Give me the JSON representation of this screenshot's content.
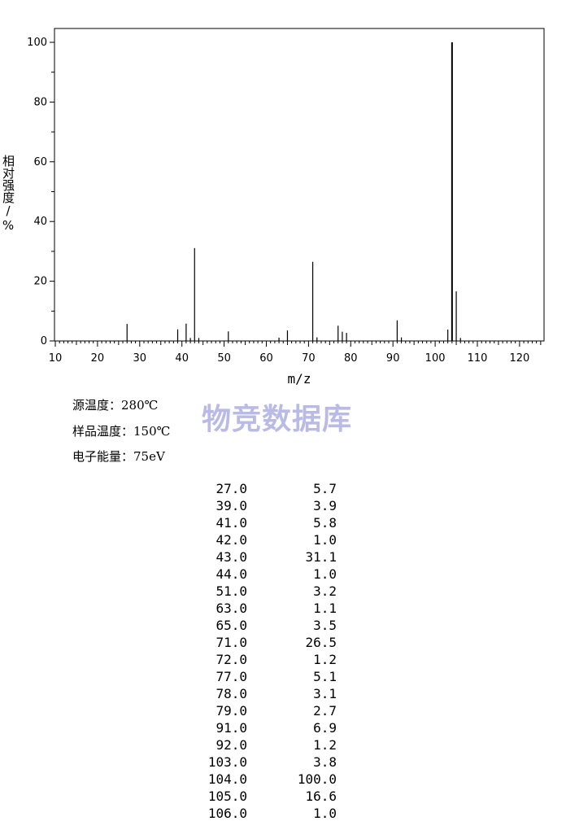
{
  "chart_data": {
    "type": "bar",
    "xlabel": "m/z",
    "ylabel": "相对强度/%",
    "xlim": [
      10,
      125
    ],
    "ylim": [
      0,
      105
    ],
    "x_ticks": [
      "10",
      "20",
      "30",
      "40",
      "50",
      "60",
      "70",
      "80",
      "90",
      "100",
      "110",
      "120"
    ],
    "y_ticks": [
      "0",
      "20",
      "40",
      "60",
      "80",
      "100"
    ],
    "grid": false,
    "peaks": [
      {
        "mz": 27.0,
        "intensity": 5.7
      },
      {
        "mz": 39.0,
        "intensity": 3.9
      },
      {
        "mz": 41.0,
        "intensity": 5.8
      },
      {
        "mz": 42.0,
        "intensity": 1.0
      },
      {
        "mz": 43.0,
        "intensity": 31.1
      },
      {
        "mz": 44.0,
        "intensity": 1.0
      },
      {
        "mz": 51.0,
        "intensity": 3.2
      },
      {
        "mz": 63.0,
        "intensity": 1.1
      },
      {
        "mz": 65.0,
        "intensity": 3.5
      },
      {
        "mz": 71.0,
        "intensity": 26.5
      },
      {
        "mz": 72.0,
        "intensity": 1.2
      },
      {
        "mz": 77.0,
        "intensity": 5.1
      },
      {
        "mz": 78.0,
        "intensity": 3.1
      },
      {
        "mz": 79.0,
        "intensity": 2.7
      },
      {
        "mz": 91.0,
        "intensity": 6.9
      },
      {
        "mz": 92.0,
        "intensity": 1.2
      },
      {
        "mz": 103.0,
        "intensity": 3.8
      },
      {
        "mz": 104.0,
        "intensity": 100.0
      },
      {
        "mz": 105.0,
        "intensity": 16.6
      },
      {
        "mz": 106.0,
        "intensity": 1.0
      }
    ]
  },
  "conditions": {
    "source_temp": "源温度：280℃",
    "sample_temp": "样品温度：150℃",
    "electron_energy": "电子能量：75eV"
  },
  "watermark": "物竞数据库",
  "peak_table": [
    {
      "mz": "27.0",
      "intensity": "5.7"
    },
    {
      "mz": "39.0",
      "intensity": "3.9"
    },
    {
      "mz": "41.0",
      "intensity": "5.8"
    },
    {
      "mz": "42.0",
      "intensity": "1.0"
    },
    {
      "mz": "43.0",
      "intensity": "31.1"
    },
    {
      "mz": "44.0",
      "intensity": "1.0"
    },
    {
      "mz": "51.0",
      "intensity": "3.2"
    },
    {
      "mz": "63.0",
      "intensity": "1.1"
    },
    {
      "mz": "65.0",
      "intensity": "3.5"
    },
    {
      "mz": "71.0",
      "intensity": "26.5"
    },
    {
      "mz": "72.0",
      "intensity": "1.2"
    },
    {
      "mz": "77.0",
      "intensity": "5.1"
    },
    {
      "mz": "78.0",
      "intensity": "3.1"
    },
    {
      "mz": "79.0",
      "intensity": "2.7"
    },
    {
      "mz": "91.0",
      "intensity": "6.9"
    },
    {
      "mz": "92.0",
      "intensity": "1.2"
    },
    {
      "mz": "103.0",
      "intensity": "3.8"
    },
    {
      "mz": "104.0",
      "intensity": "100.0"
    },
    {
      "mz": "105.0",
      "intensity": "16.6"
    },
    {
      "mz": "106.0",
      "intensity": "1.0"
    }
  ]
}
